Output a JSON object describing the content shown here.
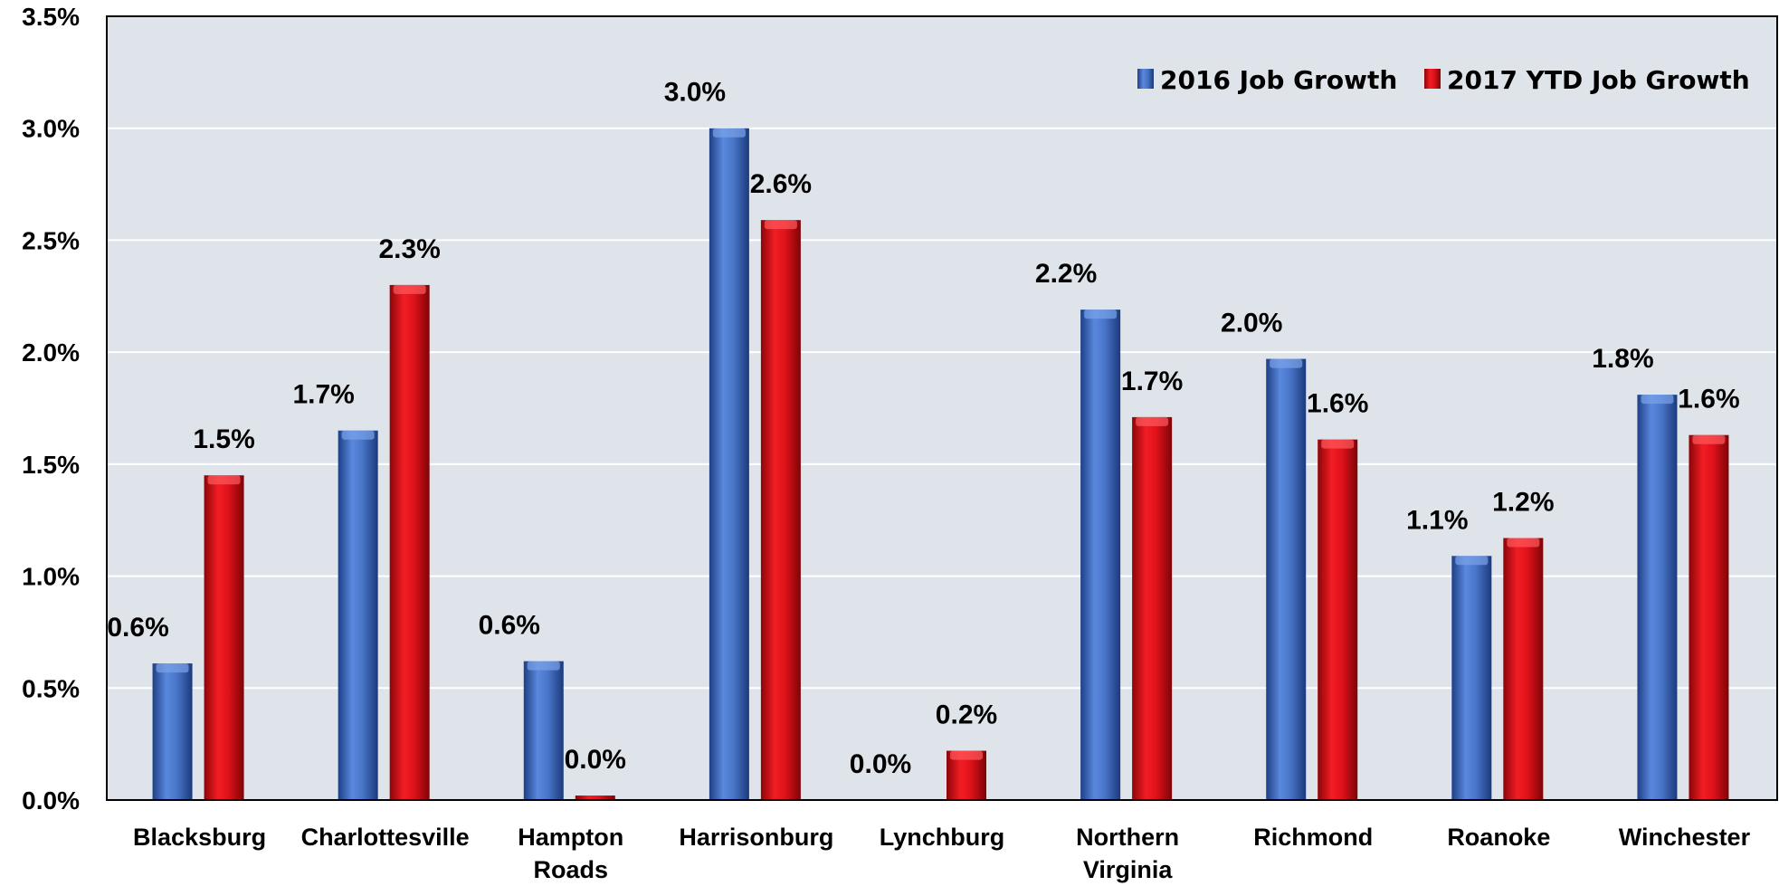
{
  "chart_data": {
    "type": "bar",
    "categories": [
      [
        "Blacksburg"
      ],
      [
        "Charlottesville"
      ],
      [
        "Hampton",
        "Roads"
      ],
      [
        "Harrisonburg"
      ],
      [
        "Lynchburg"
      ],
      [
        "Northern",
        "Virginia"
      ],
      [
        "Richmond"
      ],
      [
        "Roanoke"
      ],
      [
        "Winchester"
      ]
    ],
    "series": [
      {
        "name": "2016 Job Growth",
        "color": "#4a76c9",
        "values": [
          0.61,
          1.65,
          0.62,
          3.0,
          0.0,
          2.19,
          1.97,
          1.09,
          1.81
        ],
        "labels": [
          "0.6%",
          "1.7%",
          "0.6%",
          "3.0%",
          "0.0%",
          "2.2%",
          "2.0%",
          "1.1%",
          "1.8%"
        ]
      },
      {
        "name": "2017 YTD Job Growth",
        "color": "#e0121a",
        "values": [
          1.45,
          2.3,
          0.02,
          2.59,
          0.22,
          1.71,
          1.61,
          1.17,
          1.63
        ],
        "labels": [
          "1.5%",
          "2.3%",
          "0.0%",
          "2.6%",
          "0.2%",
          "1.7%",
          "1.6%",
          "1.2%",
          "1.6%"
        ]
      }
    ],
    "ylim": [
      0,
      3.5
    ],
    "yticks": [
      "0.0%",
      "0.5%",
      "1.0%",
      "1.5%",
      "2.0%",
      "2.5%",
      "3.0%",
      "3.5%"
    ],
    "ytick_values": [
      0,
      0.5,
      1.0,
      1.5,
      2.0,
      2.5,
      3.0,
      3.5
    ],
    "grid": true,
    "legend_position": "top-right",
    "plot_background": "#dfe4ea",
    "grid_color": "#ffffff"
  }
}
